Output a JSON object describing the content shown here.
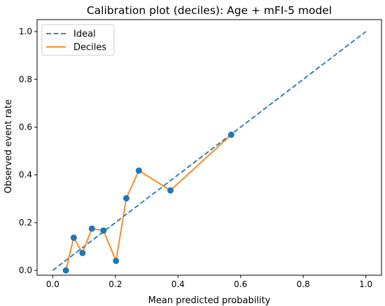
{
  "chart_data": {
    "type": "line",
    "title": "Calibration plot (deciles): Age + mFI-5 model",
    "xlabel": "Mean predicted probability",
    "ylabel": "Observed event rate",
    "xlim": [
      -0.05,
      1.05
    ],
    "ylim": [
      -0.02,
      1.05
    ],
    "xticks": [
      0.0,
      0.2,
      0.4,
      0.6,
      0.8,
      1.0
    ],
    "yticks": [
      0.0,
      0.2,
      0.4,
      0.6,
      0.8,
      1.0
    ],
    "xtick_labels": [
      "0.0",
      "0.2",
      "0.4",
      "0.6",
      "0.8",
      "1.0"
    ],
    "ytick_labels": [
      "0.0",
      "0.2",
      "0.4",
      "0.6",
      "0.8",
      "1.0"
    ],
    "grid": false,
    "legend_position": "top-left",
    "series": [
      {
        "name": "Ideal",
        "style": "dashed",
        "color": "#1f77b4",
        "x": [
          0.0,
          1.0
        ],
        "y": [
          0.0,
          1.0
        ]
      },
      {
        "name": "Deciles",
        "style": "solid",
        "color": "#ff7f0e",
        "marker_color": "#1f77b4",
        "x": [
          0.042,
          0.067,
          0.095,
          0.125,
          0.162,
          0.202,
          0.235,
          0.275,
          0.376,
          0.57
        ],
        "y": [
          0.0,
          0.137,
          0.073,
          0.175,
          0.167,
          0.04,
          0.302,
          0.418,
          0.335,
          0.568
        ]
      }
    ]
  }
}
